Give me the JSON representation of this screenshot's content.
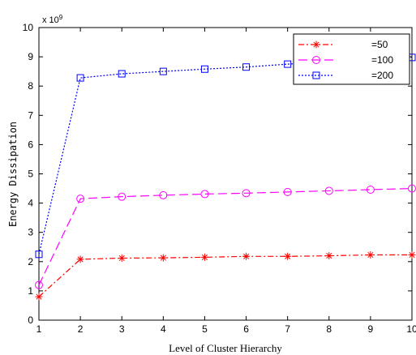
{
  "chart_data": {
    "type": "line",
    "xlabel": "Level of Cluster Hierarchy",
    "ylabel": "Energy Dissipation",
    "y_multiplier": "x 10",
    "y_multiplier_exp": "9",
    "xlim": [
      1,
      10
    ],
    "ylim": [
      0,
      10
    ],
    "xticks": [
      "1",
      "2",
      "3",
      "4",
      "5",
      "6",
      "7",
      "8",
      "9",
      "10"
    ],
    "yticks": [
      "0",
      "1",
      "2",
      "3",
      "4",
      "5",
      "6",
      "7",
      "8",
      "9",
      "10"
    ],
    "grid": false,
    "legend_position": "top-right",
    "x": [
      1,
      2,
      3,
      4,
      5,
      6,
      7,
      8,
      9,
      10
    ],
    "series": [
      {
        "name": "=50",
        "color": "#ff0000",
        "marker": "star",
        "line_style": "dash-dot",
        "values": [
          0.8,
          2.08,
          2.12,
          2.13,
          2.15,
          2.18,
          2.18,
          2.2,
          2.23,
          2.23
        ]
      },
      {
        "name": "=100",
        "color": "#ff00ff",
        "marker": "circle",
        "line_style": "long-dash",
        "values": [
          1.2,
          4.15,
          4.22,
          4.27,
          4.31,
          4.34,
          4.38,
          4.42,
          4.46,
          4.5
        ]
      },
      {
        "name": "=200",
        "color": "#0000ff",
        "marker": "square",
        "line_style": "dotted",
        "values": [
          2.25,
          8.28,
          8.42,
          8.5,
          8.58,
          8.65,
          8.75,
          8.84,
          8.92,
          8.98
        ]
      }
    ]
  }
}
